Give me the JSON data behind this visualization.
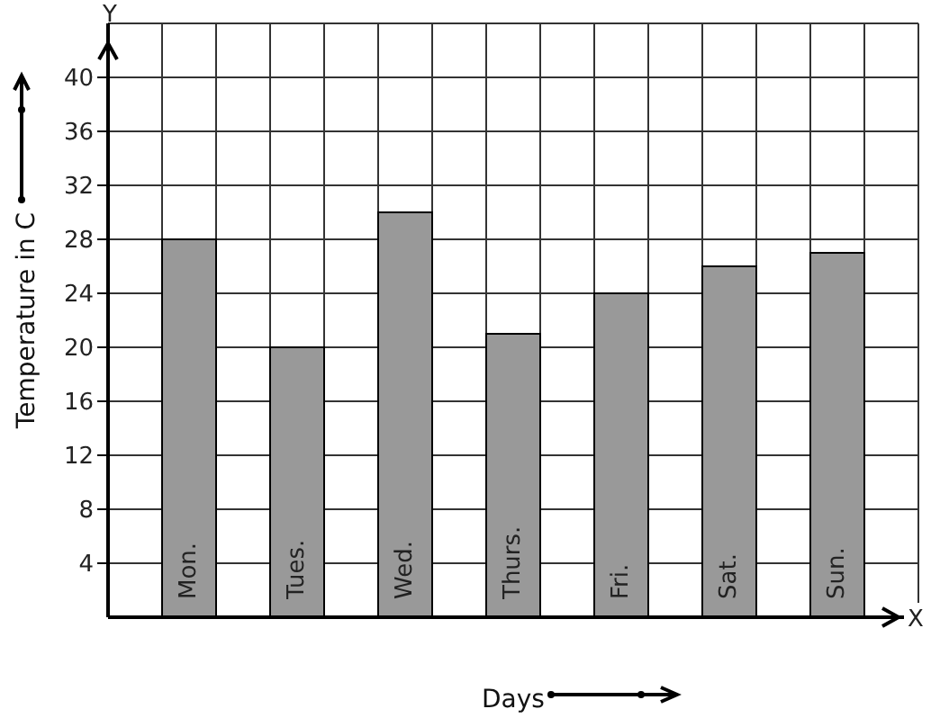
{
  "chart_data": {
    "type": "bar",
    "xlabel": "Days",
    "ylabel": "Temperature in C",
    "categories": [
      "Mon.",
      "Tues.",
      "Wed.",
      "Thurs.",
      "Fri.",
      "Sat.",
      "Sun."
    ],
    "values": [
      28,
      20,
      30,
      21,
      24,
      26,
      27
    ],
    "color": "#999999",
    "ylim": [
      0,
      44
    ],
    "yticks": [
      4,
      8,
      12,
      16,
      20,
      24,
      28,
      32,
      36,
      40
    ],
    "annotations": [
      "Y",
      "X"
    ],
    "grid": true,
    "legend": false
  }
}
